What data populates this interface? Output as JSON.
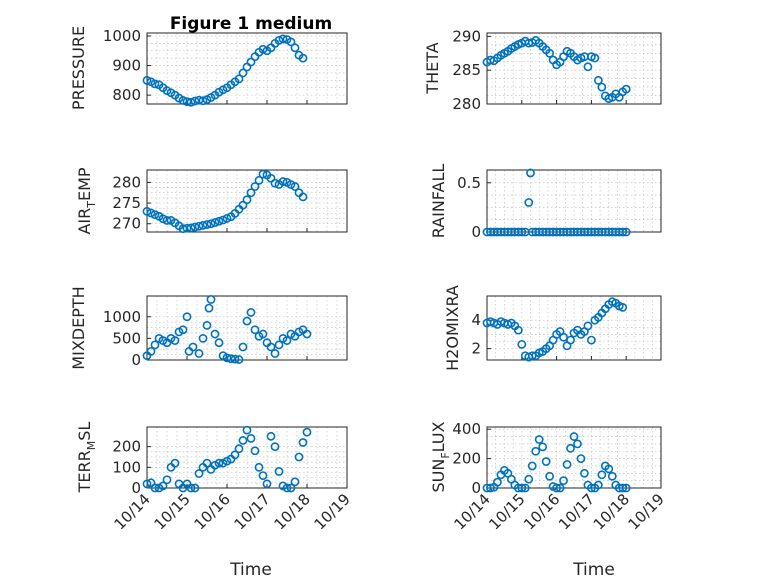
{
  "figure": {
    "title": "Figure 1 medium",
    "marker_color": "#0072BD",
    "xlabel": "Time",
    "x_tick_labels": [
      "10/14",
      "10/15",
      "10/16",
      "10/17",
      "10/18",
      "10/19"
    ]
  },
  "chart_data": [
    {
      "type": "scatter",
      "id": "pressure",
      "ylabel": "PRESSURE",
      "title": "Figure 1 medium",
      "xlim": [
        0,
        5
      ],
      "ylim": [
        770,
        1010
      ],
      "yticks": [
        800,
        900,
        1000
      ],
      "ytick_labels": [
        "800",
        "900",
        "1000"
      ],
      "grid": true,
      "x_axis_labels": false,
      "points": [
        [
          0,
          850
        ],
        [
          0.1,
          845
        ],
        [
          0.2,
          838
        ],
        [
          0.3,
          835
        ],
        [
          0.4,
          825
        ],
        [
          0.5,
          815
        ],
        [
          0.6,
          808
        ],
        [
          0.7,
          800
        ],
        [
          0.8,
          790
        ],
        [
          0.9,
          782
        ],
        [
          1.0,
          778
        ],
        [
          1.1,
          776
        ],
        [
          1.2,
          780
        ],
        [
          1.3,
          783
        ],
        [
          1.4,
          781
        ],
        [
          1.5,
          785
        ],
        [
          1.6,
          792
        ],
        [
          1.7,
          800
        ],
        [
          1.8,
          810
        ],
        [
          1.9,
          818
        ],
        [
          2.0,
          825
        ],
        [
          2.1,
          835
        ],
        [
          2.2,
          845
        ],
        [
          2.3,
          855
        ],
        [
          2.4,
          875
        ],
        [
          2.5,
          895
        ],
        [
          2.6,
          912
        ],
        [
          2.7,
          930
        ],
        [
          2.8,
          945
        ],
        [
          2.9,
          955
        ],
        [
          3.0,
          950
        ],
        [
          3.1,
          960
        ],
        [
          3.2,
          975
        ],
        [
          3.3,
          985
        ],
        [
          3.4,
          990
        ],
        [
          3.5,
          988
        ],
        [
          3.6,
          980
        ],
        [
          3.7,
          960
        ],
        [
          3.8,
          935
        ],
        [
          3.9,
          925
        ]
      ]
    },
    {
      "type": "scatter",
      "id": "theta",
      "ylabel": "THETA",
      "xlim": [
        0,
        5
      ],
      "ylim": [
        280,
        290.5
      ],
      "yticks": [
        280,
        285,
        290
      ],
      "ytick_labels": [
        "280",
        "285",
        "290"
      ],
      "grid": true,
      "x_axis_labels": false,
      "points": [
        [
          0,
          286.2
        ],
        [
          0.1,
          286.5
        ],
        [
          0.2,
          286.4
        ],
        [
          0.3,
          286.8
        ],
        [
          0.4,
          287.2
        ],
        [
          0.5,
          287.5
        ],
        [
          0.6,
          287.8
        ],
        [
          0.7,
          288.2
        ],
        [
          0.8,
          288.5
        ],
        [
          0.9,
          288.8
        ],
        [
          1.0,
          289.0
        ],
        [
          1.1,
          289.3
        ],
        [
          1.2,
          289.0
        ],
        [
          1.3,
          289.1
        ],
        [
          1.4,
          289.4
        ],
        [
          1.5,
          289.0
        ],
        [
          1.6,
          288.5
        ],
        [
          1.7,
          288.0
        ],
        [
          1.8,
          287.5
        ],
        [
          1.9,
          286.5
        ],
        [
          2.0,
          285.8
        ],
        [
          2.1,
          286.2
        ],
        [
          2.2,
          287.0
        ],
        [
          2.3,
          287.8
        ],
        [
          2.4,
          287.5
        ],
        [
          2.5,
          287.0
        ],
        [
          2.6,
          286.5
        ],
        [
          2.7,
          286.8
        ],
        [
          2.8,
          287.0
        ],
        [
          2.9,
          285.5
        ],
        [
          3.0,
          287.0
        ],
        [
          3.1,
          286.8
        ],
        [
          3.2,
          283.5
        ],
        [
          3.3,
          282.5
        ],
        [
          3.4,
          281.2
        ],
        [
          3.5,
          280.8
        ],
        [
          3.6,
          281.0
        ],
        [
          3.7,
          281.5
        ],
        [
          3.8,
          281.0
        ],
        [
          3.9,
          281.8
        ],
        [
          4.0,
          282.2
        ]
      ]
    },
    {
      "type": "scatter",
      "id": "air_temp",
      "ylabel": "AIR_TEMP",
      "xlim": [
        0,
        5
      ],
      "ylim": [
        268,
        283
      ],
      "yticks": [
        270,
        275,
        280
      ],
      "ytick_labels": [
        "270",
        "275",
        "280"
      ],
      "grid": true,
      "x_axis_labels": false,
      "points": [
        [
          0,
          273.0
        ],
        [
          0.1,
          272.6
        ],
        [
          0.2,
          272.2
        ],
        [
          0.3,
          271.8
        ],
        [
          0.4,
          271.2
        ],
        [
          0.5,
          270.8
        ],
        [
          0.6,
          270.8
        ],
        [
          0.7,
          270.2
        ],
        [
          0.8,
          269.5
        ],
        [
          0.9,
          268.8
        ],
        [
          1.0,
          268.9
        ],
        [
          1.1,
          269.0
        ],
        [
          1.2,
          269.2
        ],
        [
          1.3,
          269.4
        ],
        [
          1.4,
          269.6
        ],
        [
          1.5,
          269.8
        ],
        [
          1.6,
          270.0
        ],
        [
          1.7,
          270.3
        ],
        [
          1.8,
          270.6
        ],
        [
          1.9,
          270.9
        ],
        [
          2.0,
          271.3
        ],
        [
          2.1,
          271.7
        ],
        [
          2.2,
          272.5
        ],
        [
          2.3,
          273.5
        ],
        [
          2.4,
          274.5
        ],
        [
          2.5,
          275.8
        ],
        [
          2.6,
          277.5
        ],
        [
          2.7,
          279.0
        ],
        [
          2.8,
          280.5
        ],
        [
          2.9,
          282.0
        ],
        [
          3.0,
          281.8
        ],
        [
          3.1,
          281.0
        ],
        [
          3.2,
          279.8
        ],
        [
          3.3,
          279.5
        ],
        [
          3.4,
          280.2
        ],
        [
          3.5,
          280.0
        ],
        [
          3.6,
          279.5
        ],
        [
          3.7,
          279.0
        ],
        [
          3.8,
          277.5
        ],
        [
          3.9,
          276.5
        ]
      ]
    },
    {
      "type": "scatter",
      "id": "rainfall",
      "ylabel": "RAINFALL",
      "xlim": [
        0,
        5
      ],
      "ylim": [
        0,
        0.63
      ],
      "yticks": [
        0,
        0.5
      ],
      "ytick_labels": [
        "0",
        "0.5"
      ],
      "grid": true,
      "x_axis_labels": false,
      "points": [
        [
          0,
          0
        ],
        [
          0.1,
          0
        ],
        [
          0.2,
          0
        ],
        [
          0.3,
          0
        ],
        [
          0.4,
          0
        ],
        [
          0.5,
          0
        ],
        [
          0.6,
          0
        ],
        [
          0.7,
          0
        ],
        [
          0.8,
          0
        ],
        [
          0.9,
          0
        ],
        [
          1.0,
          0
        ],
        [
          1.1,
          0
        ],
        [
          1.2,
          0.3
        ],
        [
          1.25,
          0.6
        ],
        [
          1.3,
          0
        ],
        [
          1.4,
          0
        ],
        [
          1.5,
          0
        ],
        [
          1.6,
          0
        ],
        [
          1.7,
          0
        ],
        [
          1.8,
          0
        ],
        [
          1.9,
          0
        ],
        [
          2.0,
          0
        ],
        [
          2.1,
          0
        ],
        [
          2.2,
          0
        ],
        [
          2.3,
          0
        ],
        [
          2.4,
          0
        ],
        [
          2.5,
          0
        ],
        [
          2.6,
          0
        ],
        [
          2.7,
          0
        ],
        [
          2.8,
          0
        ],
        [
          2.9,
          0
        ],
        [
          3.0,
          0
        ],
        [
          3.1,
          0
        ],
        [
          3.2,
          0
        ],
        [
          3.3,
          0
        ],
        [
          3.4,
          0
        ],
        [
          3.5,
          0
        ],
        [
          3.6,
          0
        ],
        [
          3.7,
          0
        ],
        [
          3.8,
          0
        ],
        [
          3.9,
          0
        ],
        [
          4.0,
          0
        ]
      ]
    },
    {
      "type": "scatter",
      "id": "mixdepth",
      "ylabel": "MIXDEPTH",
      "xlim": [
        0,
        5
      ],
      "ylim": [
        0,
        1480
      ],
      "yticks": [
        0,
        500,
        1000
      ],
      "ytick_labels": [
        "0",
        "500",
        "1000"
      ],
      "grid": true,
      "x_axis_labels": false,
      "points": [
        [
          0,
          100
        ],
        [
          0.1,
          200
        ],
        [
          0.2,
          350
        ],
        [
          0.3,
          500
        ],
        [
          0.4,
          450
        ],
        [
          0.5,
          400
        ],
        [
          0.6,
          500
        ],
        [
          0.7,
          450
        ],
        [
          0.8,
          650
        ],
        [
          0.9,
          700
        ],
        [
          1.0,
          1000
        ],
        [
          1.05,
          200
        ],
        [
          1.15,
          300
        ],
        [
          1.3,
          150
        ],
        [
          1.4,
          500
        ],
        [
          1.5,
          800
        ],
        [
          1.55,
          1200
        ],
        [
          1.6,
          1400
        ],
        [
          1.7,
          600
        ],
        [
          1.8,
          400
        ],
        [
          1.9,
          100
        ],
        [
          2.0,
          50
        ],
        [
          2.1,
          30
        ],
        [
          2.2,
          20
        ],
        [
          2.3,
          10
        ],
        [
          2.4,
          300
        ],
        [
          2.5,
          900
        ],
        [
          2.6,
          1100
        ],
        [
          2.7,
          700
        ],
        [
          2.8,
          550
        ],
        [
          2.9,
          600
        ],
        [
          3.0,
          400
        ],
        [
          3.1,
          300
        ],
        [
          3.2,
          150
        ],
        [
          3.3,
          350
        ],
        [
          3.4,
          500
        ],
        [
          3.5,
          450
        ],
        [
          3.6,
          600
        ],
        [
          3.7,
          550
        ],
        [
          3.8,
          650
        ],
        [
          3.9,
          700
        ],
        [
          4.0,
          600
        ]
      ]
    },
    {
      "type": "scatter",
      "id": "h2omixra",
      "ylabel": "H2OMIXRA",
      "xlim": [
        0,
        5
      ],
      "ylim": [
        1.2,
        5.7
      ],
      "yticks": [
        2,
        4
      ],
      "ytick_labels": [
        "2",
        "4"
      ],
      "grid": true,
      "x_axis_labels": false,
      "points": [
        [
          0,
          3.8
        ],
        [
          0.1,
          3.9
        ],
        [
          0.2,
          3.8
        ],
        [
          0.3,
          3.7
        ],
        [
          0.4,
          3.9
        ],
        [
          0.5,
          3.8
        ],
        [
          0.6,
          3.7
        ],
        [
          0.7,
          3.8
        ],
        [
          0.8,
          3.6
        ],
        [
          0.9,
          3.3
        ],
        [
          1.0,
          2.3
        ],
        [
          1.1,
          1.5
        ],
        [
          1.2,
          1.4
        ],
        [
          1.3,
          1.5
        ],
        [
          1.4,
          1.5
        ],
        [
          1.5,
          1.7
        ],
        [
          1.6,
          1.8
        ],
        [
          1.7,
          2.0
        ],
        [
          1.8,
          2.2
        ],
        [
          1.9,
          2.6
        ],
        [
          2.0,
          3.0
        ],
        [
          2.1,
          3.2
        ],
        [
          2.2,
          2.8
        ],
        [
          2.3,
          2.2
        ],
        [
          2.4,
          2.6
        ],
        [
          2.5,
          3.1
        ],
        [
          2.6,
          3.3
        ],
        [
          2.7,
          3.0
        ],
        [
          2.8,
          3.2
        ],
        [
          2.9,
          3.6
        ],
        [
          3.0,
          2.6
        ],
        [
          3.1,
          4.0
        ],
        [
          3.2,
          4.2
        ],
        [
          3.3,
          4.5
        ],
        [
          3.4,
          4.8
        ],
        [
          3.5,
          5.1
        ],
        [
          3.6,
          5.3
        ],
        [
          3.7,
          5.2
        ],
        [
          3.8,
          5.0
        ],
        [
          3.9,
          4.9
        ]
      ]
    },
    {
      "type": "scatter",
      "id": "terr_msl",
      "ylabel": "TERR_MSL",
      "xlim": [
        0,
        5
      ],
      "ylim": [
        0,
        295
      ],
      "yticks": [
        0,
        100,
        200
      ],
      "ytick_labels": [
        "0",
        "100",
        "200"
      ],
      "grid": true,
      "x_axis_labels": true,
      "points": [
        [
          0,
          20
        ],
        [
          0.1,
          25
        ],
        [
          0.2,
          0
        ],
        [
          0.3,
          0
        ],
        [
          0.4,
          10
        ],
        [
          0.5,
          40
        ],
        [
          0.6,
          100
        ],
        [
          0.7,
          120
        ],
        [
          0.8,
          20
        ],
        [
          0.9,
          0
        ],
        [
          1.0,
          20
        ],
        [
          1.1,
          0
        ],
        [
          1.2,
          0
        ],
        [
          1.3,
          70
        ],
        [
          1.4,
          100
        ],
        [
          1.5,
          120
        ],
        [
          1.6,
          90
        ],
        [
          1.7,
          110
        ],
        [
          1.8,
          120
        ],
        [
          1.9,
          120
        ],
        [
          2.0,
          130
        ],
        [
          2.1,
          140
        ],
        [
          2.2,
          160
        ],
        [
          2.3,
          190
        ],
        [
          2.4,
          230
        ],
        [
          2.5,
          280
        ],
        [
          2.6,
          240
        ],
        [
          2.7,
          180
        ],
        [
          2.8,
          100
        ],
        [
          2.9,
          60
        ],
        [
          3.0,
          20
        ],
        [
          3.1,
          250
        ],
        [
          3.2,
          200
        ],
        [
          3.3,
          80
        ],
        [
          3.4,
          10
        ],
        [
          3.5,
          0
        ],
        [
          3.6,
          0
        ],
        [
          3.7,
          30
        ],
        [
          3.8,
          150
        ],
        [
          3.9,
          220
        ],
        [
          4.0,
          270
        ]
      ]
    },
    {
      "type": "scatter",
      "id": "sun_flux",
      "ylabel": "SUN_FLUX",
      "xlim": [
        0,
        5
      ],
      "ylim": [
        0,
        415
      ],
      "yticks": [
        0,
        200,
        400
      ],
      "ytick_labels": [
        "0",
        "200",
        "400"
      ],
      "grid": true,
      "x_axis_labels": true,
      "points": [
        [
          0,
          0
        ],
        [
          0.1,
          0
        ],
        [
          0.2,
          5
        ],
        [
          0.3,
          40
        ],
        [
          0.4,
          90
        ],
        [
          0.5,
          120
        ],
        [
          0.6,
          100
        ],
        [
          0.7,
          60
        ],
        [
          0.8,
          20
        ],
        [
          0.9,
          0
        ],
        [
          1.0,
          0
        ],
        [
          1.1,
          0
        ],
        [
          1.2,
          60
        ],
        [
          1.3,
          150
        ],
        [
          1.4,
          250
        ],
        [
          1.5,
          330
        ],
        [
          1.6,
          280
        ],
        [
          1.7,
          180
        ],
        [
          1.8,
          80
        ],
        [
          1.9,
          10
        ],
        [
          2.0,
          0
        ],
        [
          2.1,
          0
        ],
        [
          2.2,
          50
        ],
        [
          2.3,
          160
        ],
        [
          2.4,
          270
        ],
        [
          2.5,
          350
        ],
        [
          2.6,
          300
        ],
        [
          2.7,
          200
        ],
        [
          2.8,
          100
        ],
        [
          2.9,
          20
        ],
        [
          3.0,
          0
        ],
        [
          3.1,
          0
        ],
        [
          3.2,
          20
        ],
        [
          3.3,
          90
        ],
        [
          3.4,
          150
        ],
        [
          3.5,
          130
        ],
        [
          3.6,
          80
        ],
        [
          3.7,
          20
        ],
        [
          3.8,
          0
        ],
        [
          3.9,
          0
        ],
        [
          4.0,
          0
        ]
      ]
    }
  ]
}
